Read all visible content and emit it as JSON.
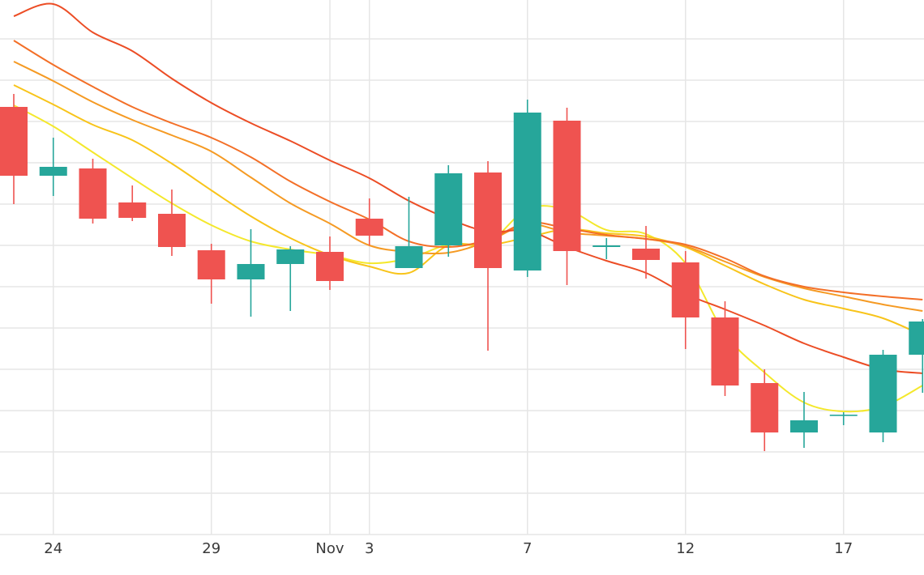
{
  "chart_data": {
    "type": "candlestick",
    "title": "",
    "xlabel": "",
    "ylabel": "",
    "grid": true,
    "ylim": [
      0,
      660
    ],
    "x_tick_labels": [
      {
        "index": 1,
        "label": "24"
      },
      {
        "index": 5,
        "label": "29"
      },
      {
        "index": 8,
        "label": "Nov"
      },
      {
        "index": 9,
        "label": "3"
      },
      {
        "index": 13,
        "label": "7"
      },
      {
        "index": 17,
        "label": "12"
      },
      {
        "index": 21,
        "label": "17"
      }
    ],
    "colors": {
      "up": "#26a69a",
      "down": "#ef5350",
      "grid": "#e6e6e6"
    },
    "candles": [
      {
        "open": 528,
        "high": 544,
        "low": 408,
        "close": 443
      },
      {
        "open": 443,
        "high": 490,
        "low": 418,
        "close": 454
      },
      {
        "open": 452,
        "high": 464,
        "low": 384,
        "close": 390
      },
      {
        "open": 410,
        "high": 431,
        "low": 387,
        "close": 391
      },
      {
        "open": 396,
        "high": 426,
        "low": 344,
        "close": 355
      },
      {
        "open": 351,
        "high": 359,
        "low": 285,
        "close": 315
      },
      {
        "open": 315,
        "high": 377,
        "low": 269,
        "close": 334
      },
      {
        "open": 334,
        "high": 356,
        "low": 276,
        "close": 352
      },
      {
        "open": 349,
        "high": 368,
        "low": 302,
        "close": 313
      },
      {
        "open": 390,
        "high": 415,
        "low": 357,
        "close": 369
      },
      {
        "open": 329,
        "high": 417,
        "low": 329,
        "close": 356
      },
      {
        "open": 357,
        "high": 456,
        "low": 343,
        "close": 446
      },
      {
        "open": 447,
        "high": 461,
        "low": 227,
        "close": 329
      },
      {
        "open": 326,
        "high": 537,
        "low": 318,
        "close": 521
      },
      {
        "open": 511,
        "high": 527,
        "low": 308,
        "close": 350
      },
      {
        "open": 355,
        "high": 366,
        "low": 340,
        "close": 357
      },
      {
        "open": 353,
        "high": 381,
        "low": 316,
        "close": 339
      },
      {
        "open": 336,
        "high": 350,
        "low": 229,
        "close": 268
      },
      {
        "open": 268,
        "high": 288,
        "low": 171,
        "close": 184
      },
      {
        "open": 187,
        "high": 204,
        "low": 103,
        "close": 126
      },
      {
        "open": 126,
        "high": 176,
        "low": 107,
        "close": 141
      },
      {
        "open": 148,
        "high": 151,
        "low": 135,
        "close": 148
      },
      {
        "open": 126,
        "high": 228,
        "low": 114,
        "close": 222
      },
      {
        "open": 222,
        "high": 266,
        "low": 175,
        "close": 263
      }
    ],
    "moving_averages": [
      {
        "color": "#f4e82c",
        "values": [
          530,
          504,
          472,
          440,
          409,
          382,
          362,
          352,
          345,
          335,
          341,
          358,
          360,
          402,
          401,
          376,
          371,
          335,
          248,
          200,
          163,
          152,
          158,
          184
        ]
      },
      {
        "color": "#f8c41a",
        "values": [
          555,
          531,
          506,
          487,
          458,
          425,
          393,
          366,
          345,
          331,
          323,
          357,
          357,
          367,
          377,
          372,
          368,
          355,
          332,
          309,
          290,
          279,
          267,
          246
        ]
      },
      {
        "color": "#f59a23",
        "values": [
          584,
          560,
          534,
          512,
          493,
          473,
          441,
          409,
          384,
          357,
          349,
          348,
          362,
          383,
          373,
          369,
          365,
          356,
          337,
          318,
          304,
          294,
          284,
          276
        ]
      },
      {
        "color": "#f36f27",
        "values": [
          610,
          580,
          553,
          528,
          508,
          490,
          466,
          436,
          411,
          389,
          362,
          355,
          364,
          385,
          378,
          370,
          365,
          358,
          341,
          319,
          306,
          299,
          294,
          290
        ]
      },
      {
        "color": "#ec4d25",
        "values": [
          640,
          655,
          620,
          597,
          563,
          533,
          508,
          486,
          462,
          440,
          412,
          390,
          374,
          375,
          355,
          338,
          323,
          297,
          278,
          258,
          236,
          219,
          204,
          199
        ]
      }
    ]
  }
}
